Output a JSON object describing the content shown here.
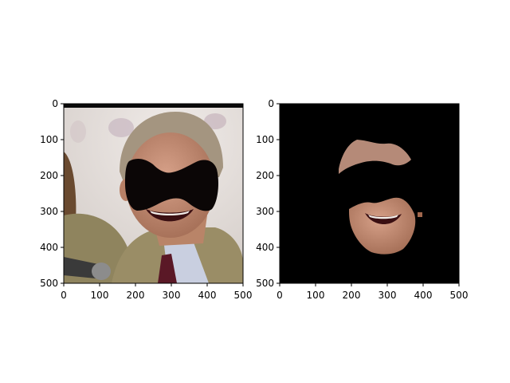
{
  "figure": {
    "background": "#ffffff",
    "panels": [
      {
        "name": "original-image",
        "content": "photo of a laughing man in a suit with a black bow-tie shaped occlusion over the eyes",
        "x_ticks": [
          "0",
          "100",
          "200",
          "300",
          "400",
          "500"
        ],
        "y_ticks": [
          "0",
          "100",
          "200",
          "300",
          "400",
          "500"
        ],
        "xlim": [
          0,
          500
        ],
        "ylim": [
          500,
          0
        ]
      },
      {
        "name": "masked-face-image",
        "content": "same photo masked to black except face skin region",
        "x_ticks": [
          "0",
          "100",
          "200",
          "300",
          "400",
          "500"
        ],
        "y_ticks": [
          "0",
          "100",
          "200",
          "300",
          "400",
          "500"
        ],
        "xlim": [
          0,
          500
        ],
        "ylim": [
          500,
          0
        ]
      }
    ],
    "colors": {
      "occlusion": "#0b0606",
      "mask_background": "#000000",
      "skin": "#c08a70",
      "suit": "#9a8d66",
      "hair": "#a49580",
      "photo_background": "#e2dcd8"
    }
  }
}
